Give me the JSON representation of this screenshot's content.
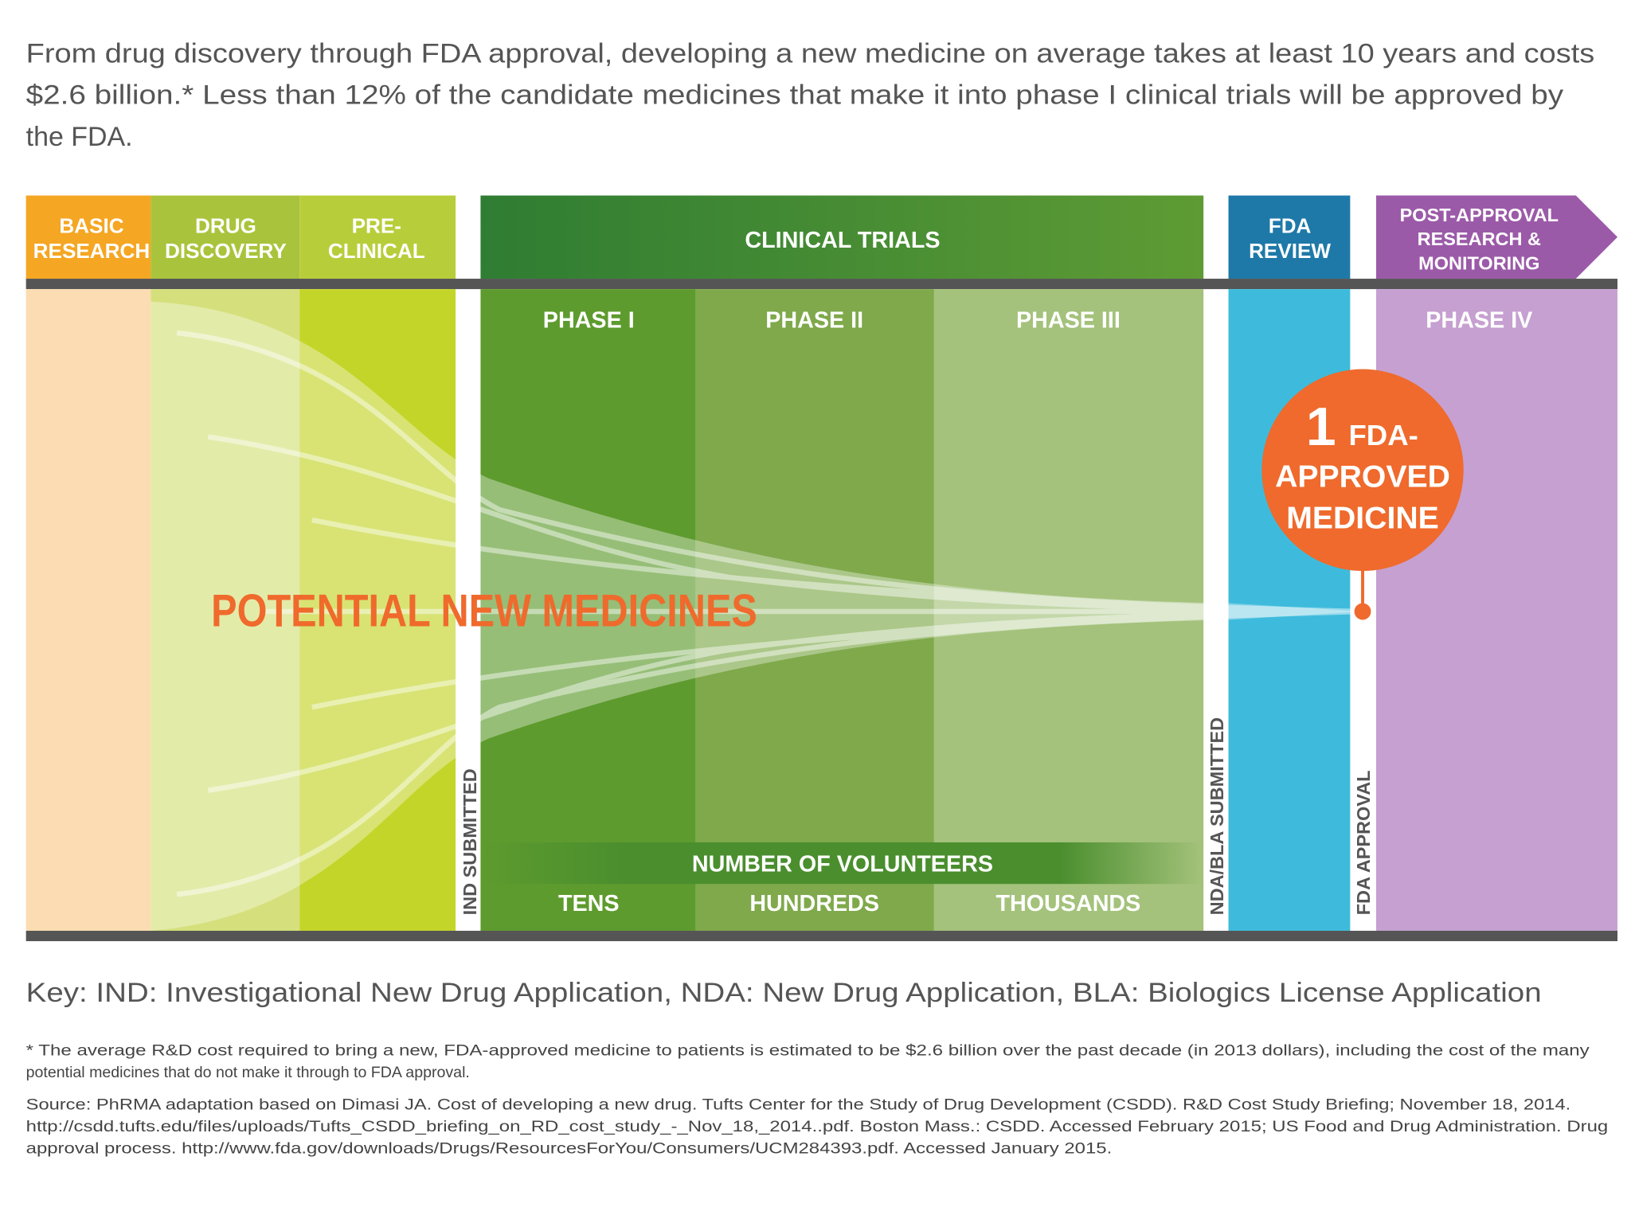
{
  "intro": [
    "From drug discovery through FDA approval, developing a new medicine on average takes at least 10 years and costs",
    "$2.6 billion.* Less than 12% of the candidate medicines that make it into phase I clinical trials will be approved by",
    "the FDA."
  ],
  "stages": {
    "basic_research": [
      "BASIC",
      "RESEARCH"
    ],
    "drug_discovery": [
      "DRUG",
      "DISCOVERY"
    ],
    "pre_clinical": [
      "PRE-",
      "CLINICAL"
    ],
    "clinical_trials": "CLINICAL TRIALS",
    "fda_review": [
      "FDA",
      "REVIEW"
    ],
    "post_approval": [
      "POST-APPROVAL",
      "RESEARCH &",
      "MONITORING"
    ]
  },
  "phases": [
    "PHASE I",
    "PHASE II",
    "PHASE III",
    "PHASE IV"
  ],
  "milestones": [
    "IND SUBMITTED",
    "NDA/BLA SUBMITTED",
    "FDA APPROVAL"
  ],
  "funnel_label": "POTENTIAL NEW MEDICINES",
  "approved": {
    "number": "1",
    "lines": [
      "FDA-",
      "APPROVED",
      "MEDICINE"
    ]
  },
  "volunteers": {
    "title": "NUMBER OF VOLUNTEERS",
    "levels": [
      "TENS",
      "HUNDREDS",
      "THOUSANDS"
    ]
  },
  "key": "Key: IND: Investigational New Drug Application, NDA: New Drug Application, BLA: Biologics License Application",
  "footnote": [
    "* The average R&D cost required to bring a new, FDA-approved medicine to patients is estimated to be $2.6 billion over the past decade (in 2013 dollars), including the cost of the many",
    "potential medicines that do not make it through to FDA approval."
  ],
  "source": [
    "Source: PhRMA adaptation based on Dimasi JA. Cost of developing a new drug. Tufts Center for the Study of Drug Development (CSDD). R&D Cost Study Briefing; November 18, 2014.",
    "http://csdd.tufts.edu/files/uploads/Tufts_CSDD_briefing_on_RD_cost_study_-_Nov_18,_2014..pdf. Boston Mass.: CSDD. Accessed February 2015; US Food and Drug Administration. Drug",
    "approval process. http://www.fda.gov/downloads/Drugs/ResourcesForYou/Consumers/UCM284393.pdf. Accessed January 2015."
  ]
}
